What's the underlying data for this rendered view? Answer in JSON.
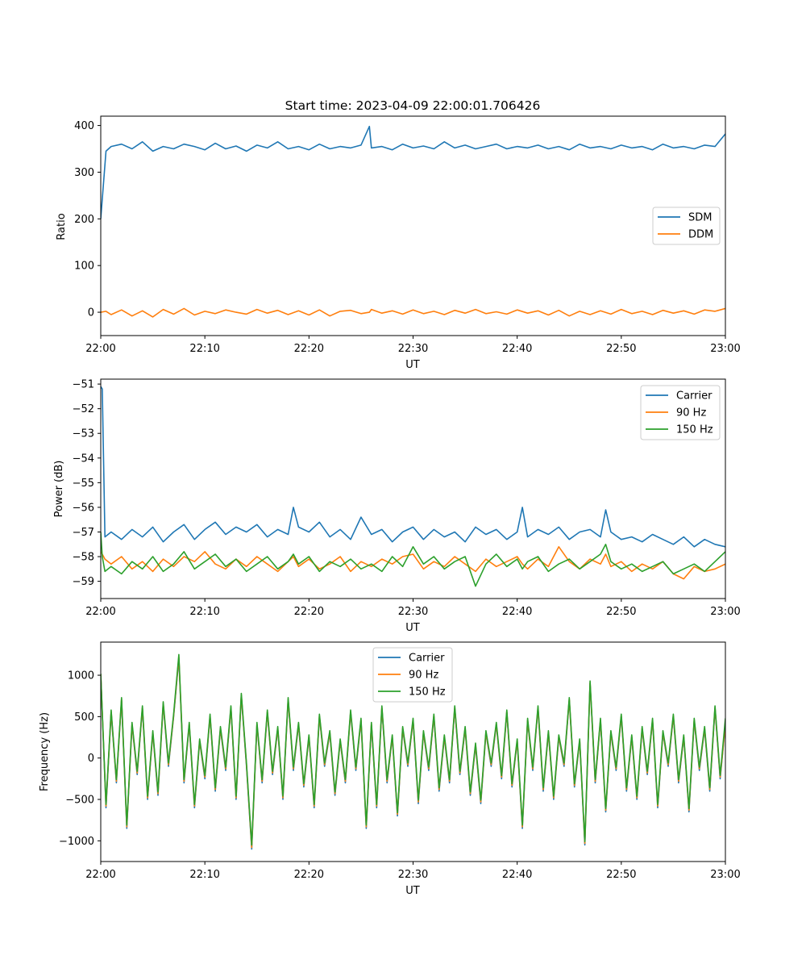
{
  "figure": {
    "title": "Start time: 2023-04-09 22:00:01.706426"
  },
  "chart_data": [
    {
      "type": "line",
      "title": "Start time: 2023-04-09 22:00:01.706426",
      "xlabel": "UT",
      "ylabel": "Ratio",
      "xlim": [
        "22:00",
        "23:00"
      ],
      "ylim": [
        -50,
        420
      ],
      "xticks": [
        "22:00",
        "22:10",
        "22:20",
        "22:30",
        "22:40",
        "22:50",
        "23:00"
      ],
      "yticks": [
        400,
        300,
        200,
        100,
        0
      ],
      "ytick_labels": [
        "400",
        "300",
        "200",
        "100",
        "0"
      ],
      "legend_position": "center-right",
      "x_minutes": [
        0,
        0.5,
        1,
        2,
        3,
        4,
        5,
        6,
        7,
        8,
        9,
        10,
        11,
        12,
        13,
        14,
        15,
        16,
        17,
        18,
        19,
        20,
        21,
        22,
        23,
        24,
        25,
        25.8,
        26,
        27,
        28,
        29,
        30,
        31,
        32,
        33,
        34,
        35,
        36,
        37,
        38,
        39,
        40,
        41,
        42,
        43,
        44,
        45,
        46,
        47,
        48,
        49,
        50,
        51,
        52,
        53,
        54,
        55,
        56,
        57,
        58,
        59,
        60
      ],
      "series": [
        {
          "name": "SDM",
          "color": "#1f77b4",
          "values": [
            200,
            345,
            355,
            360,
            350,
            365,
            345,
            355,
            350,
            360,
            355,
            348,
            362,
            350,
            356,
            345,
            358,
            352,
            365,
            350,
            355,
            348,
            360,
            350,
            355,
            352,
            358,
            398,
            352,
            355,
            348,
            360,
            352,
            356,
            350,
            365,
            352,
            358,
            350,
            355,
            360,
            350,
            355,
            352,
            358,
            350,
            355,
            348,
            360,
            352,
            355,
            350,
            358,
            352,
            355,
            348,
            360,
            352,
            355,
            350,
            358,
            355,
            382
          ]
        },
        {
          "name": "DDM",
          "color": "#ff7f0e",
          "values": [
            0,
            2,
            -5,
            5,
            -8,
            3,
            -10,
            6,
            -4,
            8,
            -6,
            2,
            -3,
            5,
            0,
            -4,
            6,
            -2,
            4,
            -5,
            3,
            -6,
            5,
            -8,
            2,
            4,
            -3,
            0,
            6,
            -2,
            3,
            -4,
            5,
            -3,
            2,
            -5,
            4,
            -2,
            6,
            -3,
            1,
            -4,
            5,
            -2,
            3,
            -6,
            4,
            -8,
            2,
            -5,
            3,
            -4,
            6,
            -3,
            2,
            -5,
            4,
            -2,
            3,
            -4,
            5,
            2,
            8
          ]
        }
      ]
    },
    {
      "type": "line",
      "xlabel": "UT",
      "ylabel": "Power (dB)",
      "xlim": [
        "22:00",
        "23:00"
      ],
      "ylim": [
        -59.7,
        -50.8
      ],
      "xticks": [
        "22:00",
        "22:10",
        "22:20",
        "22:30",
        "22:40",
        "22:50",
        "23:00"
      ],
      "yticks": [
        -51,
        -52,
        -53,
        -54,
        -55,
        -56,
        -57,
        -58,
        -59
      ],
      "ytick_labels": [
        "−51",
        "−52",
        "−53",
        "−54",
        "−55",
        "−56",
        "−57",
        "−58",
        "−59"
      ],
      "legend_position": "top-right",
      "x_minutes": [
        0,
        0.15,
        0.4,
        1,
        2,
        3,
        4,
        5,
        6,
        7,
        8,
        9,
        10,
        11,
        12,
        13,
        14,
        15,
        16,
        17,
        18,
        18.5,
        19,
        20,
        21,
        22,
        23,
        24,
        25,
        26,
        27,
        28,
        29,
        30,
        31,
        32,
        33,
        34,
        35,
        36,
        37,
        38,
        39,
        40,
        40.5,
        41,
        42,
        43,
        44,
        45,
        46,
        47,
        48,
        48.5,
        49,
        50,
        51,
        52,
        53,
        54,
        55,
        56,
        57,
        58,
        59,
        60
      ],
      "series": [
        {
          "name": "Carrier",
          "color": "#1f77b4",
          "values": [
            -51.1,
            -51.2,
            -57.2,
            -57.0,
            -57.3,
            -56.9,
            -57.2,
            -56.8,
            -57.4,
            -57.0,
            -56.7,
            -57.3,
            -56.9,
            -56.6,
            -57.1,
            -56.8,
            -57.0,
            -56.7,
            -57.2,
            -56.9,
            -57.1,
            -56.0,
            -56.8,
            -57.0,
            -56.6,
            -57.2,
            -56.9,
            -57.3,
            -56.4,
            -57.1,
            -56.9,
            -57.4,
            -57.0,
            -56.8,
            -57.3,
            -56.9,
            -57.2,
            -57.0,
            -57.4,
            -56.8,
            -57.1,
            -56.9,
            -57.3,
            -57.0,
            -56.0,
            -57.2,
            -56.9,
            -57.1,
            -56.8,
            -57.3,
            -57.0,
            -56.9,
            -57.2,
            -56.1,
            -57.0,
            -57.3,
            -57.2,
            -57.4,
            -57.1,
            -57.3,
            -57.5,
            -57.2,
            -57.6,
            -57.3,
            -57.5,
            -57.6
          ]
        },
        {
          "name": "90 Hz",
          "color": "#ff7f0e",
          "values": [
            -57.8,
            -57.9,
            -58.1,
            -58.3,
            -58.0,
            -58.5,
            -58.2,
            -58.6,
            -58.1,
            -58.4,
            -58.0,
            -58.2,
            -57.8,
            -58.3,
            -58.5,
            -58.1,
            -58.4,
            -58.0,
            -58.3,
            -58.6,
            -58.2,
            -58.0,
            -58.4,
            -58.1,
            -58.5,
            -58.3,
            -58.0,
            -58.6,
            -58.2,
            -58.4,
            -58.1,
            -58.3,
            -58.0,
            -57.9,
            -58.5,
            -58.2,
            -58.4,
            -58.0,
            -58.3,
            -58.6,
            -58.1,
            -58.4,
            -58.2,
            -58.0,
            -58.3,
            -58.5,
            -58.1,
            -58.4,
            -57.6,
            -58.2,
            -58.5,
            -58.1,
            -58.3,
            -57.9,
            -58.4,
            -58.2,
            -58.6,
            -58.3,
            -58.5,
            -58.2,
            -58.7,
            -58.9,
            -58.4,
            -58.6,
            -58.5,
            -58.3
          ]
        },
        {
          "name": "150 Hz",
          "color": "#2ca02c",
          "values": [
            -57.0,
            -58.0,
            -58.6,
            -58.4,
            -58.7,
            -58.2,
            -58.5,
            -58.0,
            -58.6,
            -58.3,
            -57.8,
            -58.5,
            -58.2,
            -57.9,
            -58.4,
            -58.1,
            -58.6,
            -58.3,
            -58.0,
            -58.5,
            -58.2,
            -57.9,
            -58.3,
            -58.0,
            -58.6,
            -58.2,
            -58.4,
            -58.1,
            -58.5,
            -58.3,
            -58.6,
            -58.0,
            -58.4,
            -57.6,
            -58.3,
            -58.0,
            -58.5,
            -58.2,
            -58.0,
            -59.2,
            -58.3,
            -57.9,
            -58.4,
            -58.1,
            -58.5,
            -58.2,
            -58.0,
            -58.6,
            -58.3,
            -58.1,
            -58.5,
            -58.2,
            -57.9,
            -57.5,
            -58.2,
            -58.5,
            -58.3,
            -58.6,
            -58.4,
            -58.2,
            -58.7,
            -58.5,
            -58.3,
            -58.6,
            -58.2,
            -57.8
          ]
        }
      ]
    },
    {
      "type": "line",
      "xlabel": "UT",
      "ylabel": "Frequency (Hz)",
      "xlim": [
        "22:00",
        "23:00"
      ],
      "ylim": [
        -1250,
        1400
      ],
      "xticks": [
        "22:00",
        "22:10",
        "22:20",
        "22:30",
        "22:40",
        "22:50",
        "23:00"
      ],
      "yticks": [
        1000,
        500,
        0,
        -500,
        -1000
      ],
      "ytick_labels": [
        "1000",
        "500",
        "0",
        "−500",
        "−1000"
      ],
      "legend_position": "top-center",
      "x_minutes": [
        0,
        0.5,
        1,
        1.5,
        2,
        2.5,
        3,
        3.5,
        4,
        4.5,
        5,
        5.5,
        6,
        6.5,
        7,
        7.5,
        8,
        8.5,
        9,
        9.5,
        10,
        10.5,
        11,
        11.5,
        12,
        12.5,
        13,
        13.5,
        14,
        14.5,
        15,
        15.5,
        16,
        16.5,
        17,
        17.5,
        18,
        18.5,
        19,
        19.5,
        20,
        20.5,
        21,
        21.5,
        22,
        22.5,
        23,
        23.5,
        24,
        24.5,
        25,
        25.5,
        26,
        26.5,
        27,
        27.5,
        28,
        28.5,
        29,
        29.5,
        30,
        30.5,
        31,
        31.5,
        32,
        32.5,
        33,
        33.5,
        34,
        34.5,
        35,
        35.5,
        36,
        36.5,
        37,
        37.5,
        38,
        38.5,
        39,
        39.5,
        40,
        40.5,
        41,
        41.5,
        42,
        42.5,
        43,
        43.5,
        44,
        44.5,
        45,
        45.5,
        46,
        46.5,
        47,
        47.5,
        48,
        48.5,
        49,
        49.5,
        50,
        50.5,
        51,
        51.5,
        52,
        52.5,
        53,
        53.5,
        54,
        54.5,
        55,
        55.5,
        56,
        56.5,
        57,
        57.5,
        58,
        58.5,
        59,
        59.5,
        60
      ],
      "series": [
        {
          "name": "Carrier",
          "color": "#1f77b4",
          "values": [
            1000,
            -600,
            550,
            -300,
            700,
            -850,
            400,
            -200,
            600,
            -500,
            300,
            -450,
            650,
            -100,
            500,
            1200,
            -300,
            400,
            -600,
            200,
            -250,
            500,
            -400,
            350,
            -150,
            600,
            -500,
            750,
            -100,
            -1100,
            400,
            -300,
            550,
            -200,
            350,
            -500,
            700,
            -150,
            400,
            -350,
            250,
            -600,
            500,
            -100,
            300,
            -450,
            200,
            -300,
            550,
            -150,
            450,
            -850,
            400,
            -600,
            600,
            -300,
            250,
            -700,
            350,
            -100,
            450,
            -550,
            300,
            -150,
            500,
            -400,
            250,
            -300,
            600,
            -200,
            350,
            -450,
            150,
            -550,
            300,
            -100,
            400,
            -250,
            550,
            -350,
            200,
            -850,
            450,
            -150,
            600,
            -400,
            300,
            -500,
            250,
            -100,
            700,
            -350,
            200,
            -1050,
            900,
            -300,
            450,
            -650,
            300,
            -150,
            500,
            -400,
            250,
            -500,
            350,
            -200,
            450,
            -600,
            300,
            -100,
            500,
            -300,
            250,
            -650,
            450,
            -150,
            350,
            -400,
            600,
            -250,
            400
          ]
        },
        {
          "name": "90 Hz",
          "color": "#ff7f0e",
          "values": [
            1010,
            -580,
            560,
            -280,
            710,
            -830,
            410,
            -180,
            610,
            -480,
            310,
            -430,
            660,
            -80,
            510,
            1220,
            -280,
            410,
            -580,
            210,
            -230,
            510,
            -380,
            360,
            -130,
            610,
            -480,
            760,
            -80,
            -1080,
            410,
            -280,
            560,
            -180,
            360,
            -480,
            710,
            -130,
            410,
            -330,
            260,
            -580,
            510,
            -80,
            310,
            -430,
            210,
            -280,
            560,
            -130,
            460,
            -830,
            410,
            -580,
            610,
            -280,
            260,
            -680,
            360,
            -80,
            460,
            -530,
            310,
            -130,
            510,
            -380,
            260,
            -280,
            610,
            -180,
            360,
            -430,
            160,
            -530,
            310,
            -80,
            410,
            -230,
            560,
            -330,
            210,
            -830,
            460,
            -130,
            610,
            -380,
            310,
            -480,
            260,
            -80,
            710,
            -330,
            210,
            -1030,
            910,
            -280,
            460,
            -630,
            310,
            -130,
            510,
            -380,
            260,
            -480,
            360,
            -180,
            460,
            -580,
            310,
            -80,
            510,
            -280,
            260,
            -630,
            460,
            -130,
            360,
            -380,
            610,
            -230,
            410
          ]
        },
        {
          "name": "150 Hz",
          "color": "#2ca02c",
          "values": [
            1020,
            -560,
            580,
            -260,
            730,
            -810,
            430,
            -160,
            630,
            -460,
            330,
            -410,
            680,
            -60,
            530,
            1250,
            -260,
            430,
            -560,
            230,
            -210,
            530,
            -360,
            380,
            -110,
            630,
            -460,
            780,
            -60,
            -1050,
            430,
            -260,
            580,
            -160,
            380,
            -460,
            730,
            -110,
            430,
            -310,
            280,
            -560,
            530,
            -60,
            330,
            -410,
            230,
            -260,
            580,
            -110,
            480,
            -810,
            430,
            -560,
            630,
            -260,
            280,
            -660,
            380,
            -60,
            480,
            -510,
            330,
            -110,
            530,
            -360,
            280,
            -260,
            630,
            -160,
            380,
            -410,
            180,
            -510,
            330,
            -60,
            430,
            -210,
            580,
            -310,
            230,
            -810,
            480,
            -110,
            630,
            -360,
            330,
            -460,
            280,
            -60,
            730,
            -310,
            230,
            -1010,
            930,
            -260,
            480,
            -610,
            330,
            -110,
            530,
            -360,
            280,
            -460,
            380,
            -160,
            480,
            -560,
            330,
            -60,
            530,
            -260,
            280,
            -610,
            480,
            -110,
            380,
            -360,
            630,
            -210,
            480
          ]
        }
      ]
    }
  ]
}
